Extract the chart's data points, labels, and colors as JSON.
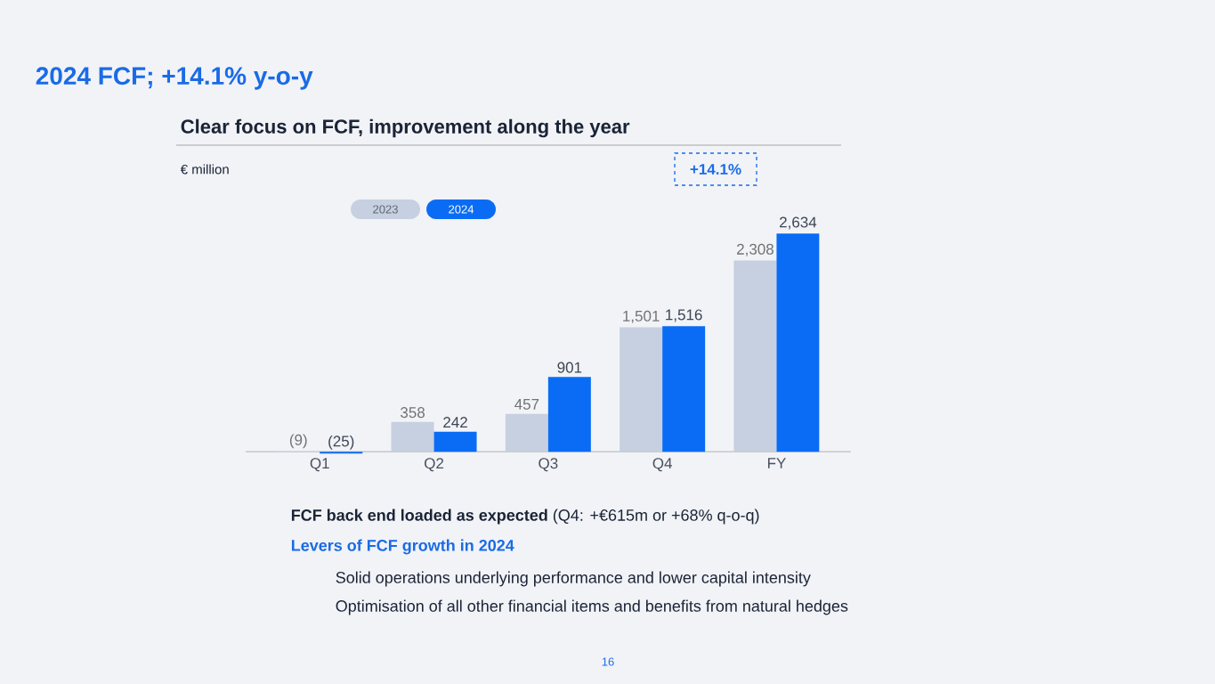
{
  "chart_data": {
    "type": "bar",
    "title": "2024 FCF; +14.1% y-o-y",
    "subtitle": "Clear focus on FCF, improvement along the year",
    "categories": [
      "Q1",
      "Q2",
      "Q3",
      "Q4",
      "FY"
    ],
    "legend": "top left",
    "series": [
      {
        "name": "2023",
        "color": "#c6d0e0",
        "values": [
          -9,
          358,
          457,
          1501,
          2308
        ],
        "value_labels": [
          "(9)",
          "358",
          "457",
          "1,501",
          "2,308"
        ]
      },
      {
        "name": "2024",
        "color": "#0a6cf4",
        "values": [
          -25,
          242,
          901,
          1516,
          2634
        ],
        "value_labels": [
          "(25)",
          "242",
          "901",
          "1,516",
          "2,634"
        ]
      }
    ],
    "annotations": [
      "€ million",
      "+14.1%",
      "**FCF back end loaded as expected** (Q4: +€615m or +68% q-o-q)",
      "Levers of FCF growth in 2024",
      "Solid operations underlying performance and lower capital intensity",
      "Optimisation of all other financial items and benefits from natural hedges",
      "16"
    ]
  }
}
